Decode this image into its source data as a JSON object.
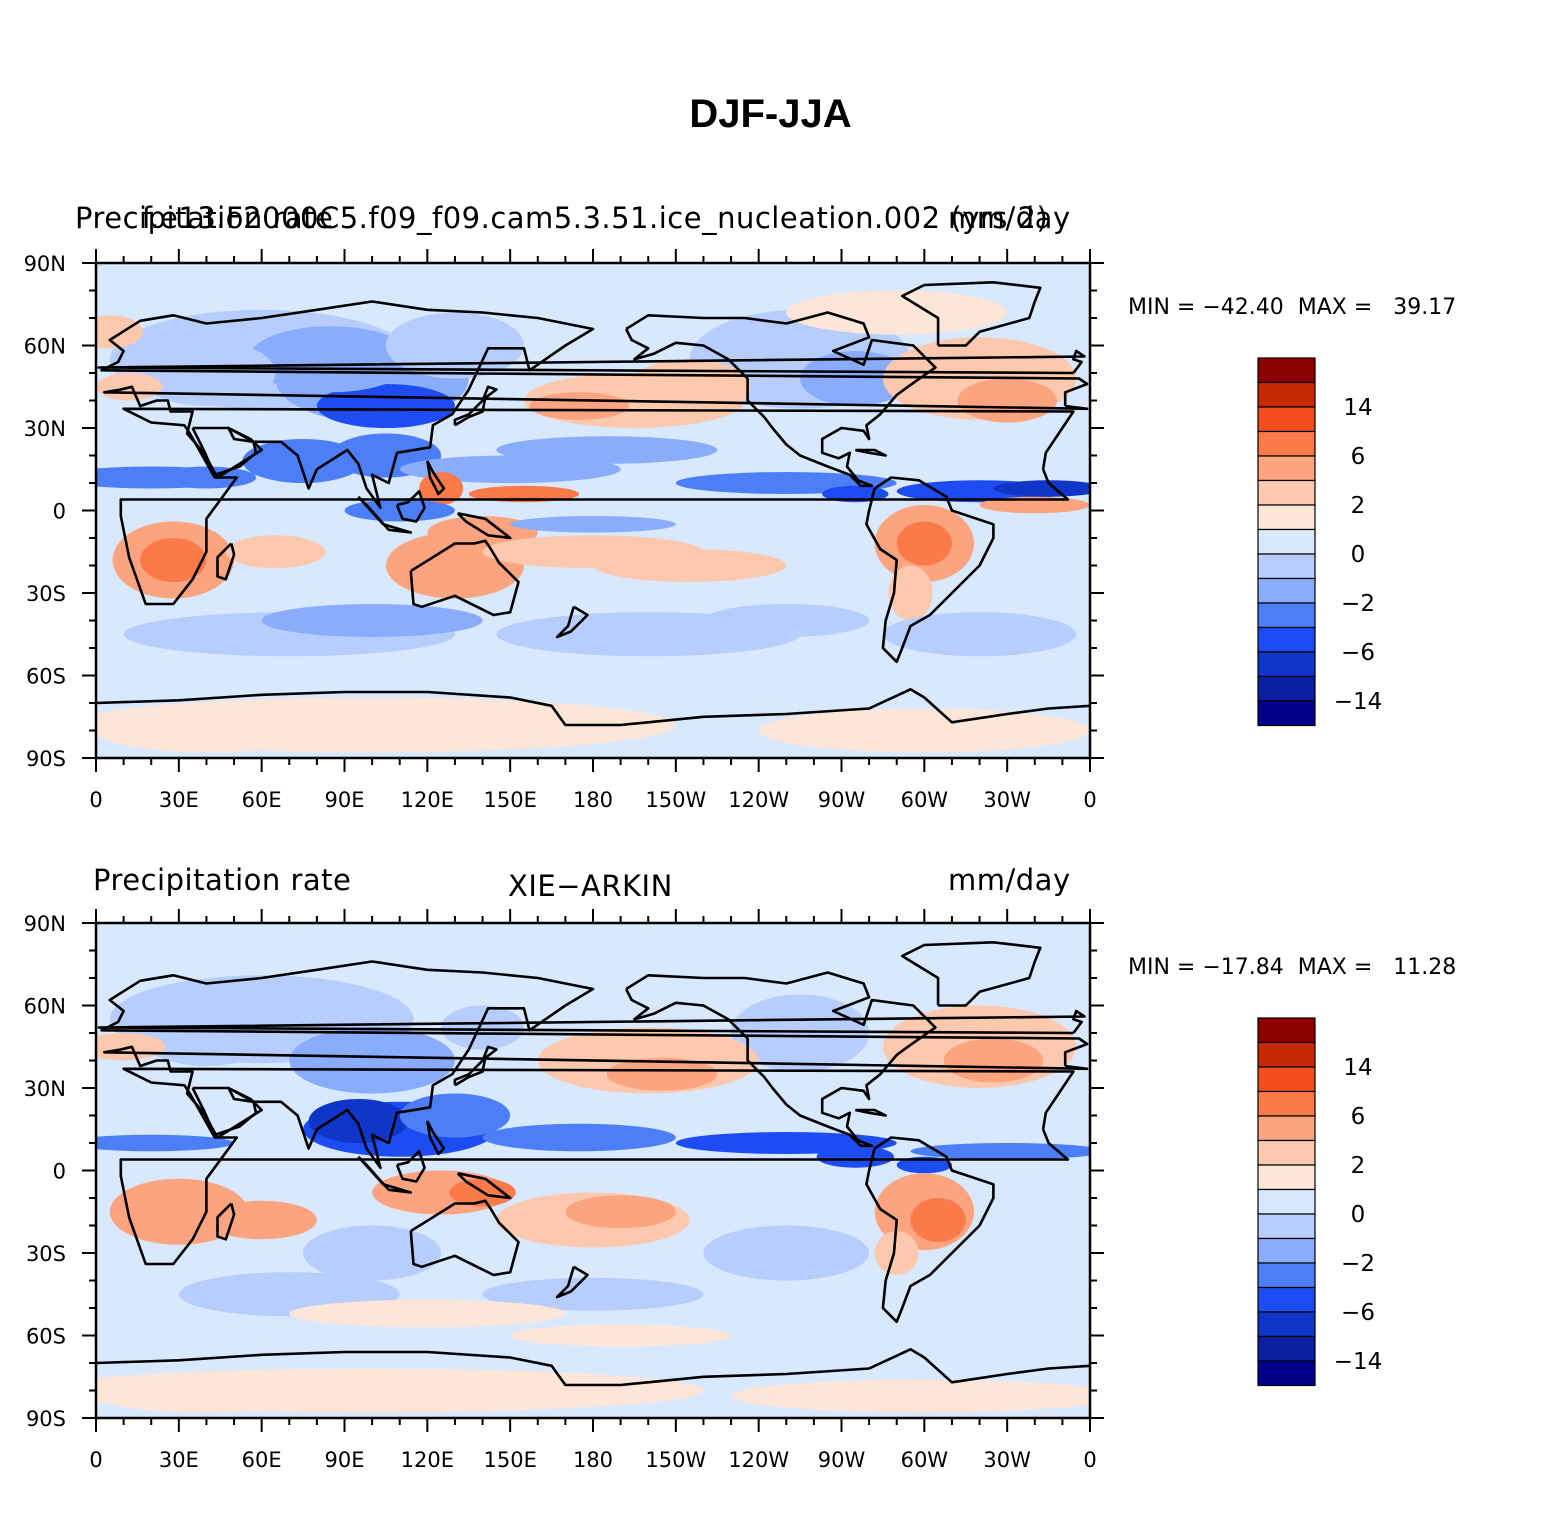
{
  "title": "DJF-JJA",
  "colors": {
    "levels": [
      "#00008b",
      "#0b1fa0",
      "#0f36c8",
      "#1d4cf2",
      "#4c7ef8",
      "#89acfb",
      "#b7cdfd",
      "#d8e8fe",
      "#fde6d8",
      "#fdc9ae",
      "#fca380",
      "#fb7a4a",
      "#f44e1e",
      "#c52a05",
      "#8b0000"
    ],
    "coast": "#000000"
  },
  "colorbar_labels": [
    "14",
    "6",
    "2",
    "0",
    "−2",
    "−6",
    "−14"
  ],
  "lat_labels": [
    "90N",
    "60N",
    "30N",
    "0",
    "30S",
    "60S",
    "90S"
  ],
  "lon_labels": [
    "0",
    "30E",
    "60E",
    "90E",
    "120E",
    "150E",
    "180",
    "150W",
    "120W",
    "90W",
    "60W",
    "30W",
    "0"
  ],
  "panels": [
    {
      "left_title": "Precipitation rate",
      "center_title": "f.e13.F2000C5.f09_f09.cam5.3.51.ice_nucleation.002 (yrs 2)",
      "right_title": "mm/day",
      "stats": "MIN = −42.40  MAX =   39.17"
    },
    {
      "left_title": "Precipitation rate",
      "center_title": "XIE−ARKIN",
      "right_title": "mm/day",
      "stats": "MIN = −17.84  MAX =   11.28"
    }
  ]
}
